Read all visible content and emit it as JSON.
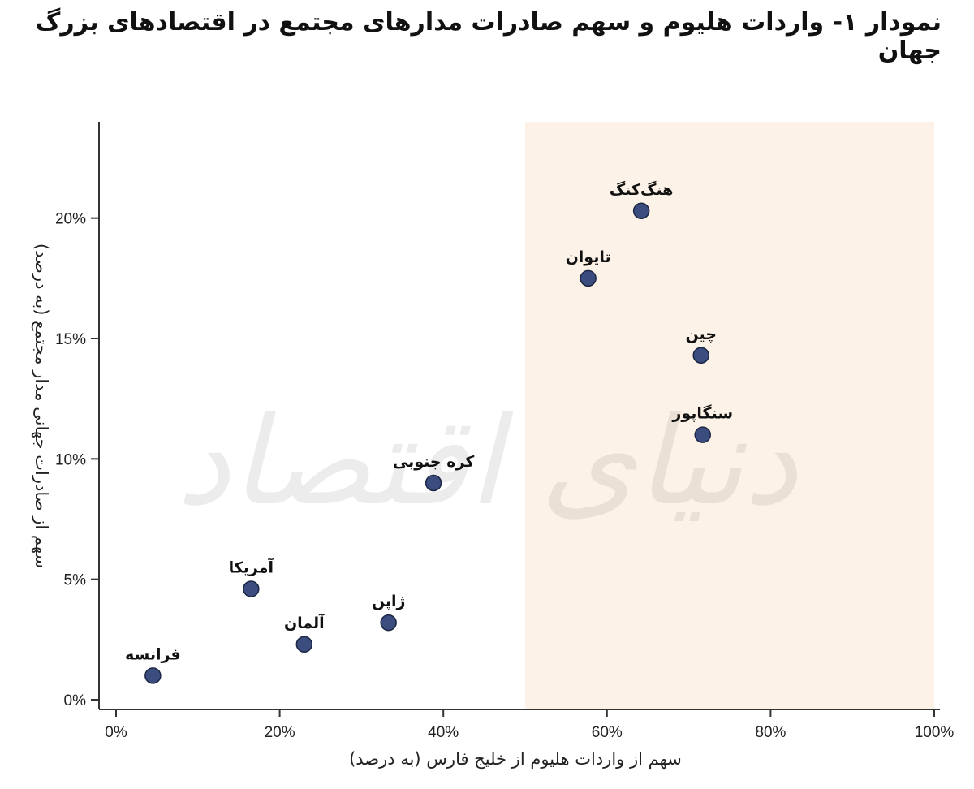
{
  "chart_data": {
    "type": "scatter",
    "title": "نمودار ۱- واردات هلیوم و سهم صادرات مدارهای مجتمع در اقتصادهای بزرگ جهان",
    "xlabel": "سهم از واردات هلیوم از خلیج فارس (به درصد)",
    "ylabel": "سهم از صادرات جهانی مدار مجتمع (به درصد)",
    "xlim": [
      0,
      100
    ],
    "ylim": [
      0,
      24
    ],
    "xticks": [
      0,
      20,
      40,
      60,
      80,
      100
    ],
    "xtick_labels": [
      "0%",
      "20%",
      "40%",
      "60%",
      "80%",
      "100%"
    ],
    "yticks": [
      0,
      5,
      10,
      15,
      20
    ],
    "ytick_labels": [
      "0%",
      "5%",
      "10%",
      "15%",
      "20%"
    ],
    "shaded_region_x": [
      50,
      100
    ],
    "grid": false,
    "points": [
      {
        "label": "فرانسه",
        "x": 4.5,
        "y": 1.0
      },
      {
        "label": "آمریکا",
        "x": 16.5,
        "y": 4.6
      },
      {
        "label": "آلمان",
        "x": 23.0,
        "y": 2.3
      },
      {
        "label": "ژاپن",
        "x": 33.3,
        "y": 3.2
      },
      {
        "label": "کره جنوبی",
        "x": 38.8,
        "y": 9.0
      },
      {
        "label": "تایوان",
        "x": 57.7,
        "y": 17.5
      },
      {
        "label": "هنگ‌کنگ",
        "x": 64.2,
        "y": 20.3
      },
      {
        "label": "چین",
        "x": 71.5,
        "y": 14.3
      },
      {
        "label": "سنگاپور",
        "x": 71.7,
        "y": 11.0
      }
    ],
    "colors": {
      "point": "#3b4d7e",
      "point_stroke": "#1c2644",
      "shade": "#fdf2e7",
      "axis": "#333333"
    }
  },
  "watermark": "دنیای اقتصاد"
}
